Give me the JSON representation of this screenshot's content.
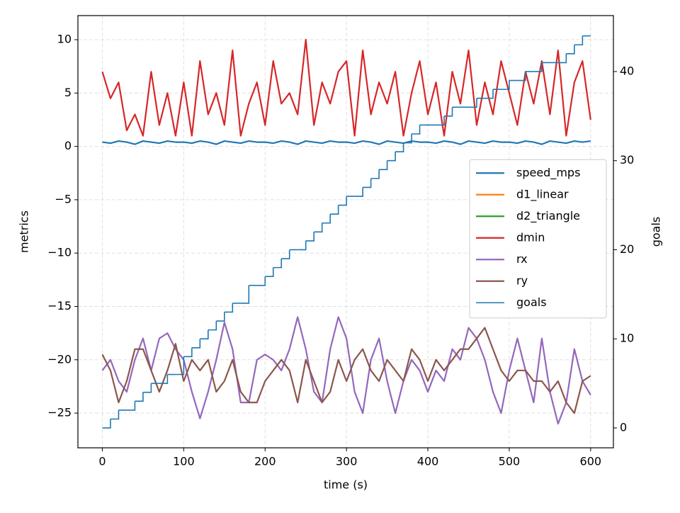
{
  "chart_data": {
    "type": "line",
    "xlabel": "time (s)",
    "ylabel": "metrics",
    "y2label": "goals",
    "x": [
      0,
      10,
      20,
      30,
      40,
      50,
      60,
      70,
      80,
      90,
      100,
      110,
      120,
      130,
      140,
      150,
      160,
      170,
      180,
      190,
      200,
      210,
      220,
      230,
      240,
      250,
      260,
      270,
      280,
      290,
      300,
      310,
      320,
      330,
      340,
      350,
      360,
      370,
      380,
      390,
      400,
      410,
      420,
      430,
      440,
      450,
      460,
      470,
      480,
      490,
      500,
      510,
      520,
      530,
      540,
      550,
      560,
      570,
      580,
      590,
      600
    ],
    "series": [
      {
        "name": "speed_mps",
        "color": "#1f77b4",
        "values": [
          0.4,
          0.3,
          0.5,
          0.4,
          0.2,
          0.5,
          0.4,
          0.3,
          0.5,
          0.4,
          0.4,
          0.3,
          0.5,
          0.4,
          0.2,
          0.5,
          0.4,
          0.3,
          0.5,
          0.4,
          0.4,
          0.3,
          0.5,
          0.4,
          0.2,
          0.5,
          0.4,
          0.3,
          0.5,
          0.4,
          0.4,
          0.3,
          0.5,
          0.4,
          0.2,
          0.5,
          0.4,
          0.3,
          0.5,
          0.4,
          0.4,
          0.3,
          0.5,
          0.4,
          0.2,
          0.5,
          0.4,
          0.3,
          0.5,
          0.4,
          0.4,
          0.3,
          0.5,
          0.4,
          0.2,
          0.5,
          0.4,
          0.3,
          0.5,
          0.4,
          0.5
        ]
      },
      {
        "name": "d1_linear",
        "color": "#ff7f0e",
        "values": [
          null,
          null,
          null,
          null,
          null,
          null,
          null,
          null,
          null,
          null,
          null,
          null,
          null,
          null,
          null,
          null,
          null,
          null,
          null,
          null,
          null,
          null,
          null,
          null,
          null,
          null,
          null,
          null,
          null,
          null,
          null,
          null,
          null,
          null,
          null,
          null,
          null,
          null,
          null,
          null,
          null,
          null,
          null,
          null,
          null,
          null,
          null,
          null,
          null,
          null,
          null,
          null,
          null,
          null,
          null,
          null,
          null,
          null,
          null,
          null,
          null
        ]
      },
      {
        "name": "d2_triangle",
        "color": "#2ca02c",
        "values": [
          null,
          null,
          null,
          null,
          null,
          null,
          null,
          null,
          null,
          null,
          null,
          null,
          null,
          null,
          null,
          null,
          null,
          null,
          null,
          null,
          null,
          null,
          null,
          null,
          null,
          null,
          null,
          null,
          null,
          null,
          null,
          null,
          null,
          null,
          null,
          null,
          null,
          null,
          null,
          null,
          null,
          null,
          null,
          null,
          null,
          null,
          null,
          null,
          null,
          null,
          null,
          null,
          null,
          null,
          null,
          null,
          null,
          null,
          null,
          null,
          null
        ]
      },
      {
        "name": "dmin",
        "color": "#d62728",
        "values": [
          7,
          4.5,
          6,
          1.5,
          3,
          1,
          7,
          2,
          5,
          1,
          6,
          1,
          8,
          3,
          5,
          2,
          9,
          1,
          4,
          6,
          2,
          8,
          4,
          5,
          3,
          10,
          2,
          6,
          4,
          7,
          8,
          1,
          9,
          3,
          6,
          4,
          7,
          1,
          5,
          8,
          3,
          6,
          1,
          7,
          4,
          9,
          2,
          6,
          3,
          8,
          5,
          2,
          7,
          4,
          8,
          3,
          9,
          1,
          6,
          8,
          2.5
        ]
      },
      {
        "name": "rx",
        "color": "#9467bd",
        "values": [
          -21,
          -20,
          -22,
          -23,
          -20,
          -18,
          -21,
          -18,
          -17.5,
          -19,
          -20,
          -23,
          -25.5,
          -23,
          -20,
          -16.5,
          -19,
          -24,
          -24,
          -20,
          -19.5,
          -20,
          -21,
          -19,
          -16,
          -19,
          -23,
          -24,
          -19,
          -16,
          -18,
          -23,
          -25,
          -20,
          -18,
          -22,
          -25,
          -22,
          -20,
          -21,
          -23,
          -21,
          -22,
          -19,
          -20,
          -17,
          -18,
          -20,
          -23,
          -25,
          -21,
          -18,
          -21,
          -24,
          -18,
          -23,
          -26,
          -24,
          -19,
          -22,
          -23.3
        ]
      },
      {
        "name": "ry",
        "color": "#8c564b",
        "values": [
          -19.5,
          -21,
          -24,
          -22,
          -19,
          -19,
          -21,
          -23,
          -21,
          -18.5,
          -22,
          -20,
          -21,
          -20,
          -23,
          -22,
          -20,
          -23,
          -24,
          -24,
          -22,
          -21,
          -20,
          -21,
          -24,
          -20,
          -22,
          -24,
          -23,
          -20,
          -22,
          -20,
          -19,
          -21,
          -22,
          -20,
          -21,
          -22,
          -19,
          -20,
          -22,
          -20,
          -21,
          -20,
          -19,
          -19,
          -18,
          -17,
          -19,
          -21,
          -22,
          -21,
          -21,
          -22,
          -22,
          -23,
          -22,
          -24,
          -25,
          -22,
          -21.5
        ]
      },
      {
        "name": "goals",
        "color": "#1f77b4",
        "axis": "y2",
        "step": true,
        "values": [
          0,
          1,
          2,
          2,
          3,
          4,
          5,
          5,
          6,
          6,
          8,
          9,
          10,
          11,
          12,
          13,
          14,
          14,
          16,
          16,
          17,
          18,
          19,
          20,
          20,
          21,
          22,
          23,
          24,
          25,
          26,
          26,
          27,
          28,
          29,
          30,
          31,
          32,
          33,
          34,
          34,
          34,
          35,
          36,
          36,
          36,
          37,
          37,
          38,
          38,
          39,
          39,
          40,
          40,
          41,
          41,
          41,
          42,
          43,
          44,
          44
        ]
      }
    ],
    "xlim": [
      -30,
      628
    ],
    "xticks": [
      0,
      100,
      200,
      300,
      400,
      500,
      600
    ],
    "ylim": [
      -28.25,
      12.26
    ],
    "yticks": [
      {
        "value": -25,
        "label": "−25"
      },
      {
        "value": -20,
        "label": "−20"
      },
      {
        "value": -15,
        "label": "−15"
      },
      {
        "value": -10,
        "label": "−10"
      },
      {
        "value": -5,
        "label": "−5"
      },
      0,
      5,
      10
    ],
    "y2lim": [
      -2.23,
      46.28
    ],
    "y2ticks": [
      0,
      10,
      20,
      30,
      40
    ],
    "grid": true,
    "legend": "center right"
  }
}
